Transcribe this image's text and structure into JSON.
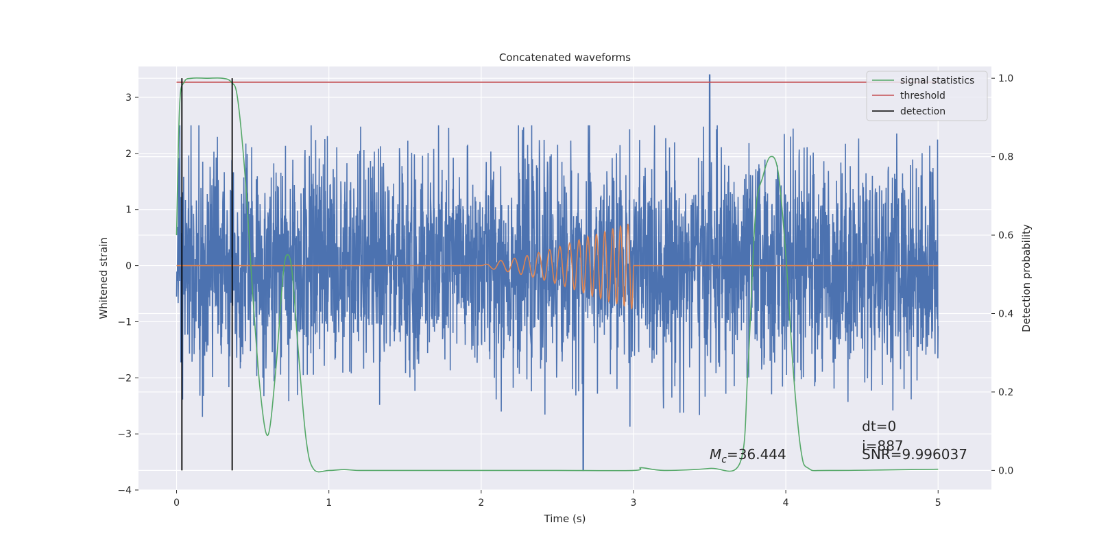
{
  "chart_data": {
    "type": "line",
    "title": "Concatenated waveforms",
    "xlabel": "Time (s)",
    "ylabel": "Whitened strain",
    "ylabel_right": "Detection probability",
    "xlim": [
      -0.25,
      5.35
    ],
    "ylim": [
      -4,
      3.55
    ],
    "ylim_right": [
      -0.05,
      1.03
    ],
    "x_ticks": [
      {
        "value": 0,
        "label": "0"
      },
      {
        "value": 1,
        "label": "1"
      },
      {
        "value": 2,
        "label": "2"
      },
      {
        "value": 3,
        "label": "3"
      },
      {
        "value": 4,
        "label": "4"
      },
      {
        "value": 5,
        "label": "5"
      }
    ],
    "y_ticks": [
      {
        "value": 3,
        "label": "3"
      },
      {
        "value": 2,
        "label": "2"
      },
      {
        "value": 1,
        "label": "1"
      },
      {
        "value": 0,
        "label": "0"
      },
      {
        "value": -1,
        "label": "−1"
      },
      {
        "value": -2,
        "label": "−2"
      },
      {
        "value": -3,
        "label": "−3"
      },
      {
        "value": -4,
        "label": "−4"
      }
    ],
    "y_ticks_right": [
      {
        "value": 1.0,
        "label": "1.0"
      },
      {
        "value": 0.8,
        "label": "0.8"
      },
      {
        "value": 0.6,
        "label": "0.6"
      },
      {
        "value": 0.4,
        "label": "0.4"
      },
      {
        "value": 0.2,
        "label": "0.2"
      },
      {
        "value": 0.0,
        "label": "0.0"
      }
    ],
    "grid": true,
    "legend_position": "top-right",
    "legend": [
      {
        "label": "signal statistics",
        "color": "#55a868"
      },
      {
        "label": "threshold",
        "color": "#c44e52"
      },
      {
        "label": "detection",
        "color": "#000000"
      }
    ],
    "colors": {
      "noise": "#4c72b0",
      "template": "#dd8452",
      "signal_statistics": "#55a868",
      "threshold": "#c44e52",
      "detection": "#000000",
      "axes_background": "#eaeaf2",
      "grid": "#ffffff"
    },
    "noise": {
      "x_range": [
        0,
        5
      ],
      "envelope_y": [
        -2.95,
        2.5
      ],
      "max_peak": {
        "x": 3.5,
        "y": 3.4
      },
      "min_peak": {
        "x": 2.67,
        "y": -3.65
      }
    },
    "template": {
      "axis": "left",
      "x": [
        0,
        2.0,
        2.1,
        2.2,
        2.3,
        2.4,
        2.5,
        2.6,
        2.7,
        2.8,
        2.9,
        2.97,
        3.0,
        5.0
      ],
      "amplitude": [
        0,
        0,
        0.08,
        0.12,
        0.18,
        0.25,
        0.33,
        0.42,
        0.52,
        0.6,
        0.7,
        0.75,
        0.8,
        0
      ],
      "chirp_start": 2.0,
      "chirp_end": 3.0
    },
    "signal_statistics": {
      "axis": "right",
      "x": [
        0.0,
        0.02,
        0.05,
        0.1,
        0.2,
        0.3,
        0.36,
        0.4,
        0.45,
        0.5,
        0.55,
        0.6,
        0.65,
        0.7,
        0.73,
        0.76,
        0.8,
        0.85,
        0.9,
        1.0,
        1.1,
        1.2,
        1.5,
        2.0,
        2.5,
        3.0,
        3.05,
        3.2,
        3.5,
        3.7,
        3.75,
        3.8,
        3.85,
        3.9,
        3.95,
        4.0,
        4.05,
        4.1,
        4.15,
        4.3,
        5.0
      ],
      "y": [
        0.6,
        0.93,
        0.99,
        1.0,
        1.0,
        1.0,
        0.99,
        0.95,
        0.75,
        0.45,
        0.2,
        0.09,
        0.25,
        0.5,
        0.55,
        0.5,
        0.3,
        0.08,
        0.003,
        0.0,
        0.002,
        0.0,
        0.0,
        0.0,
        0.0,
        0.0,
        0.007,
        0.0,
        0.005,
        0.02,
        0.25,
        0.65,
        0.75,
        0.8,
        0.76,
        0.55,
        0.25,
        0.05,
        0.005,
        0.0,
        0.003
      ]
    },
    "threshold": {
      "axis": "right",
      "value": 0.99,
      "x_range": [
        0,
        5
      ]
    },
    "detections": {
      "axis": "right",
      "x": [
        0.035,
        0.365
      ],
      "y_range": [
        0.0,
        1.0
      ]
    },
    "annotations": {
      "mc": {
        "symbol": "M",
        "subscript": "c",
        "value": "=36.444",
        "x": 3.5,
        "y": -3.45
      },
      "dt": {
        "text": "dt=0",
        "x": 4.5,
        "y": -2.95
      },
      "index": {
        "text": "i=887",
        "x": 4.5,
        "y": -3.3
      },
      "snr": {
        "text": "SNR=9.996037",
        "x": 4.5,
        "y": -3.45
      }
    }
  }
}
